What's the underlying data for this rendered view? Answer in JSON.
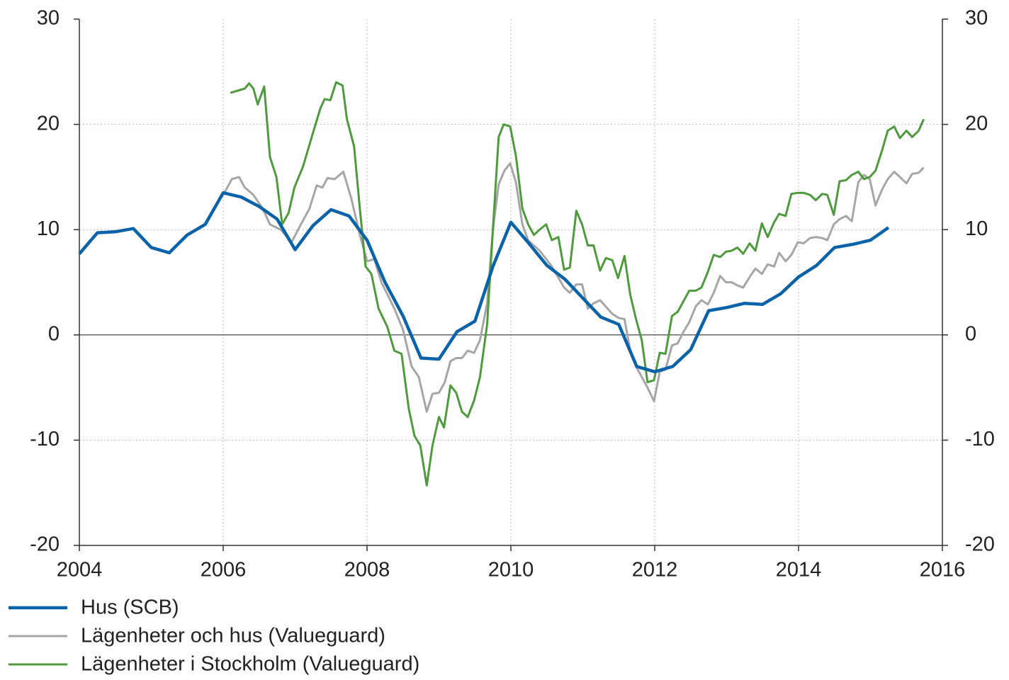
{
  "chart_data": {
    "type": "line",
    "xlim": [
      2004,
      2016
    ],
    "xticks": [
      2004,
      2006,
      2008,
      2010,
      2012,
      2014,
      2016
    ],
    "ylim": [
      -20,
      30
    ],
    "yticks": [
      -20,
      -10,
      0,
      10,
      20,
      30
    ],
    "y2lim": [
      -20,
      30
    ],
    "y2ticks": [
      -20,
      -10,
      0,
      10,
      20,
      30
    ],
    "grid": true,
    "legend": "bottom-left",
    "series": [
      {
        "name": "Hus (SCB)",
        "color": "#0a63a9",
        "x": [
          2004.0,
          2004.25,
          2004.5,
          2004.75,
          2005.0,
          2005.25,
          2005.5,
          2005.75,
          2006.0,
          2006.25,
          2006.5,
          2006.75,
          2007.0,
          2007.25,
          2007.5,
          2007.75,
          2008.0,
          2008.25,
          2008.5,
          2008.75,
          2009.0,
          2009.25,
          2009.5,
          2009.75,
          2010.0,
          2010.25,
          2010.5,
          2010.75,
          2011.0,
          2011.25,
          2011.5,
          2011.75,
          2012.0,
          2012.25,
          2012.5,
          2012.75,
          2013.0,
          2013.25,
          2013.5,
          2013.75,
          2014.0,
          2014.25,
          2014.5,
          2014.75,
          2015.0,
          2015.25
        ],
        "values": [
          7.7,
          9.7,
          9.8,
          10.1,
          8.3,
          7.8,
          9.5,
          10.5,
          13.5,
          13.1,
          12.2,
          11.0,
          8.1,
          10.4,
          11.9,
          11.3,
          9.0,
          5.0,
          1.8,
          -2.2,
          -2.3,
          0.3,
          1.3,
          6.5,
          10.7,
          8.7,
          6.6,
          5.3,
          3.5,
          1.7,
          1.0,
          -3.0,
          -3.5,
          -3.0,
          -1.4,
          2.3,
          2.6,
          3.0,
          2.9,
          3.9,
          5.5,
          6.6,
          8.3,
          8.6,
          9.0,
          10.2
        ]
      },
      {
        "name": "Lägenheter och hus (Valueguard)",
        "color": "#a6a6a6",
        "x": [
          2006.0,
          2006.12,
          2006.22,
          2006.3,
          2006.42,
          2006.55,
          2006.65,
          2006.8,
          2006.95,
          2007.08,
          2007.2,
          2007.3,
          2007.38,
          2007.45,
          2007.55,
          2007.67,
          2007.78,
          2007.9,
          2008.0,
          2008.1,
          2008.2,
          2008.38,
          2008.5,
          2008.62,
          2008.72,
          2008.83,
          2008.91,
          2009.0,
          2009.08,
          2009.16,
          2009.24,
          2009.32,
          2009.4,
          2009.49,
          2009.57,
          2009.67,
          2009.75,
          2009.83,
          2009.91,
          2009.99,
          2010.07,
          2010.16,
          2010.24,
          2010.4,
          2010.57,
          2010.74,
          2010.82,
          2010.91,
          2010.99,
          2011.07,
          2011.15,
          2011.24,
          2011.41,
          2011.5,
          2011.58,
          2011.66,
          2011.74,
          2011.9,
          2011.99,
          2012.07,
          2012.15,
          2012.24,
          2012.32,
          2012.4,
          2012.48,
          2012.57,
          2012.65,
          2012.74,
          2012.82,
          2012.91,
          2012.99,
          2013.07,
          2013.15,
          2013.23,
          2013.32,
          2013.4,
          2013.49,
          2013.57,
          2013.66,
          2013.73,
          2013.82,
          2013.9,
          2013.99,
          2014.07,
          2014.16,
          2014.24,
          2014.33,
          2014.4,
          2014.49,
          2014.57,
          2014.66,
          2014.74,
          2014.83,
          2014.91,
          2014.99,
          2015.07,
          2015.16,
          2015.24,
          2015.33,
          2015.41,
          2015.5,
          2015.58,
          2015.67,
          2015.74
        ],
        "values": [
          13.3,
          14.8,
          15.0,
          14.0,
          13.3,
          12.0,
          10.5,
          10.0,
          8.8,
          10.5,
          12.0,
          14.2,
          14.0,
          14.9,
          14.8,
          15.5,
          13.0,
          9.5,
          7.0,
          7.2,
          5.0,
          2.5,
          0.5,
          -3.0,
          -4.0,
          -7.3,
          -5.6,
          -5.5,
          -4.5,
          -2.5,
          -2.2,
          -2.2,
          -1.5,
          -1.7,
          -0.5,
          3.0,
          10.0,
          14.3,
          15.6,
          16.3,
          14.5,
          10.5,
          9.0,
          8.0,
          6.5,
          4.5,
          4.0,
          4.8,
          4.8,
          2.5,
          3.0,
          3.3,
          2.0,
          1.6,
          1.5,
          -1.5,
          -3.0,
          -5.0,
          -6.3,
          -3.5,
          -3.3,
          -1.0,
          -0.8,
          0.3,
          1.2,
          2.7,
          3.3,
          2.9,
          4.0,
          5.6,
          5.0,
          5.0,
          4.7,
          4.5,
          5.5,
          6.3,
          5.8,
          6.7,
          6.5,
          7.8,
          7.0,
          7.6,
          8.8,
          8.7,
          9.2,
          9.3,
          9.2,
          9.0,
          10.5,
          11.0,
          11.3,
          10.8,
          14.5,
          15.2,
          14.8,
          12.3,
          13.8,
          14.8,
          15.5,
          15.0,
          14.4,
          15.3,
          15.4,
          15.9
        ]
      },
      {
        "name": "Lägenheter i Stockholm (Valueguard)",
        "color": "#4e9a3c",
        "x": [
          2006.1,
          2006.3,
          2006.36,
          2006.42,
          2006.48,
          2006.57,
          2006.65,
          2006.74,
          2006.82,
          2006.91,
          2006.99,
          2007.11,
          2007.24,
          2007.35,
          2007.41,
          2007.49,
          2007.57,
          2007.66,
          2007.72,
          2007.82,
          2007.9,
          2007.98,
          2008.06,
          2008.16,
          2008.28,
          2008.38,
          2008.48,
          2008.58,
          2008.66,
          2008.74,
          2008.83,
          2008.91,
          2009.0,
          2009.07,
          2009.16,
          2009.24,
          2009.32,
          2009.4,
          2009.49,
          2009.57,
          2009.67,
          2009.75,
          2009.83,
          2009.9,
          2009.99,
          2010.07,
          2010.16,
          2010.24,
          2010.32,
          2010.4,
          2010.49,
          2010.57,
          2010.66,
          2010.74,
          2010.82,
          2010.91,
          2010.99,
          2011.07,
          2011.15,
          2011.24,
          2011.32,
          2011.41,
          2011.49,
          2011.58,
          2011.66,
          2011.74,
          2011.82,
          2011.9,
          2011.99,
          2012.07,
          2012.15,
          2012.24,
          2012.32,
          2012.4,
          2012.48,
          2012.57,
          2012.65,
          2012.74,
          2012.82,
          2012.91,
          2012.99,
          2013.07,
          2013.15,
          2013.23,
          2013.32,
          2013.4,
          2013.49,
          2013.57,
          2013.66,
          2013.73,
          2013.82,
          2013.9,
          2013.99,
          2014.07,
          2014.16,
          2014.24,
          2014.33,
          2014.4,
          2014.49,
          2014.57,
          2014.66,
          2014.74,
          2014.83,
          2014.91,
          2014.99,
          2015.07,
          2015.16,
          2015.24,
          2015.33,
          2015.41,
          2015.5,
          2015.58,
          2015.67,
          2015.74
        ],
        "values": [
          23.0,
          23.4,
          23.9,
          23.4,
          21.9,
          23.6,
          16.9,
          15.0,
          10.5,
          11.6,
          14.0,
          16.0,
          19.0,
          21.5,
          22.4,
          22.3,
          24.0,
          23.7,
          20.5,
          17.9,
          12.0,
          6.5,
          5.8,
          2.5,
          0.8,
          -1.5,
          -1.8,
          -7.0,
          -9.6,
          -10.5,
          -14.3,
          -10.5,
          -7.8,
          -8.8,
          -4.8,
          -5.5,
          -7.3,
          -7.8,
          -6.2,
          -4.0,
          1.0,
          10.0,
          18.8,
          20.0,
          19.8,
          17.0,
          12.0,
          10.5,
          9.5,
          10.0,
          10.5,
          9.0,
          9.3,
          6.2,
          6.4,
          11.8,
          10.5,
          8.5,
          8.5,
          6.1,
          7.3,
          7.1,
          5.4,
          7.5,
          3.8,
          1.5,
          -0.5,
          -4.5,
          -4.3,
          -1.7,
          -1.8,
          1.8,
          2.2,
          3.2,
          4.2,
          4.2,
          4.5,
          6.0,
          7.6,
          7.4,
          7.9,
          8.0,
          8.3,
          7.7,
          8.7,
          8.0,
          10.6,
          9.3,
          10.7,
          11.5,
          11.3,
          13.4,
          13.5,
          13.5,
          13.3,
          12.8,
          13.4,
          13.3,
          11.4,
          14.6,
          14.7,
          15.2,
          15.5,
          14.8,
          15.0,
          15.6,
          17.5,
          19.4,
          19.8,
          18.7,
          19.4,
          18.8,
          19.4,
          20.5
        ]
      }
    ]
  }
}
